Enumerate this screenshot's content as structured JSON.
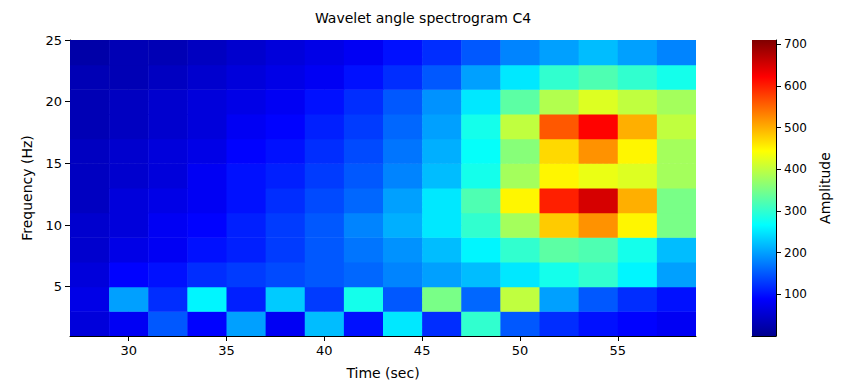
{
  "chart_data": {
    "type": "heatmap",
    "title": "Wavelet angle spectrogram C4",
    "xlabel": "Time (sec)",
    "ylabel": "Frequency (Hz)",
    "x": [
      28,
      30,
      32,
      34,
      36,
      38,
      40,
      42,
      44,
      46,
      48,
      50,
      52,
      54,
      56,
      58
    ],
    "y": [
      2,
      4,
      6,
      8,
      10,
      12,
      14,
      16,
      18,
      20,
      22,
      24
    ],
    "z": [
      [
        60,
        80,
        150,
        90,
        200,
        80,
        220,
        100,
        250,
        120,
        300,
        150,
        120,
        100,
        90,
        80
      ],
      [
        70,
        200,
        120,
        260,
        110,
        230,
        130,
        280,
        150,
        350,
        160,
        400,
        200,
        150,
        120,
        100
      ],
      [
        60,
        90,
        100,
        120,
        130,
        140,
        150,
        160,
        180,
        200,
        220,
        250,
        280,
        300,
        260,
        200
      ],
      [
        50,
        70,
        80,
        100,
        110,
        130,
        150,
        170,
        190,
        220,
        260,
        300,
        330,
        320,
        280,
        220
      ],
      [
        50,
        60,
        80,
        90,
        110,
        130,
        150,
        180,
        210,
        250,
        300,
        380,
        480,
        520,
        450,
        350
      ],
      [
        40,
        60,
        70,
        80,
        100,
        120,
        140,
        160,
        200,
        250,
        320,
        450,
        600,
        650,
        500,
        350
      ],
      [
        40,
        50,
        60,
        80,
        100,
        110,
        130,
        150,
        180,
        220,
        280,
        380,
        450,
        430,
        420,
        380
      ],
      [
        40,
        50,
        60,
        70,
        90,
        100,
        120,
        140,
        170,
        210,
        270,
        360,
        470,
        520,
        450,
        380
      ],
      [
        30,
        40,
        50,
        60,
        80,
        90,
        110,
        130,
        160,
        200,
        280,
        400,
        560,
        620,
        500,
        400
      ],
      [
        30,
        40,
        50,
        60,
        70,
        80,
        100,
        120,
        150,
        190,
        250,
        330,
        390,
        420,
        400,
        380
      ],
      [
        30,
        30,
        40,
        50,
        60,
        70,
        80,
        100,
        120,
        150,
        200,
        250,
        300,
        320,
        300,
        280
      ],
      [
        20,
        30,
        30,
        40,
        50,
        60,
        70,
        80,
        100,
        120,
        150,
        180,
        200,
        220,
        200,
        180
      ]
    ],
    "xlim": [
      27,
      59
    ],
    "xticks": [
      30,
      35,
      40,
      45,
      50,
      55
    ],
    "ylim": [
      1,
      25
    ],
    "yticks": [
      5,
      10,
      15,
      20,
      25
    ],
    "colorbar": {
      "label": "Amplitude",
      "range": [
        0,
        710
      ],
      "ticks": [
        100,
        200,
        300,
        400,
        500,
        600,
        700
      ],
      "colors": [
        "#00008f",
        "#0000ff",
        "#0080ff",
        "#00ffff",
        "#80ff80",
        "#ffff00",
        "#ff8000",
        "#ff0000",
        "#800000"
      ]
    },
    "grid": true
  }
}
